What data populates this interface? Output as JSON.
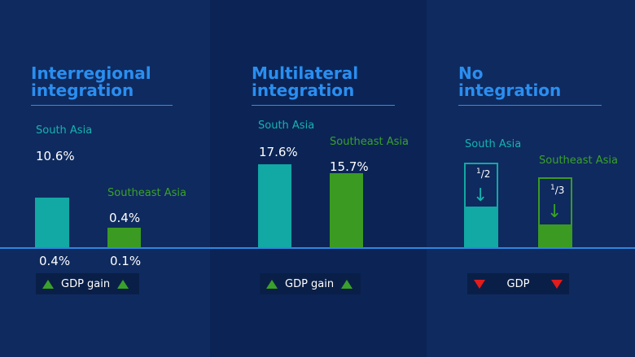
{
  "colors": {
    "south_asia": "#12a8a4",
    "southeast_asia": "#3b9a22",
    "title": "#2a8ef0",
    "up": "#3aa12a",
    "down": "#e21b1b"
  },
  "panels": [
    {
      "title": "Interregional\nintegration",
      "south_label": "South Asia",
      "southeast_label": "Southeast Asia",
      "south_value": "10.6%",
      "southeast_value": "0.4%",
      "south_below": "0.4%",
      "southeast_below": "0.1%",
      "legend": "GDP gain"
    },
    {
      "title": "Multilateral\nintegration",
      "south_label": "South Asia",
      "southeast_label": "Southeast Asia",
      "south_value": "17.6%",
      "southeast_value": "15.7%",
      "legend": "GDP gain"
    },
    {
      "title": "No\nintegration",
      "south_label": "South Asia",
      "southeast_label": "Southeast Asia",
      "south_frac_num": "1",
      "south_frac_den": "2",
      "southeast_frac_num": "1",
      "southeast_frac_den": "3",
      "legend": "GDP"
    }
  ],
  "chart_data": [
    {
      "type": "bar",
      "title": "Interregional integration",
      "categories": [
        "South Asia",
        "Southeast Asia"
      ],
      "values": [
        10.6,
        0.4
      ],
      "labels_below": [
        0.4,
        0.1
      ],
      "unit": "%",
      "legend": "GDP gain"
    },
    {
      "type": "bar",
      "title": "Multilateral integration",
      "categories": [
        "South Asia",
        "Southeast Asia"
      ],
      "values": [
        17.6,
        15.7
      ],
      "unit": "%",
      "legend": "GDP gain"
    },
    {
      "type": "bar",
      "title": "No integration",
      "categories": [
        "South Asia",
        "Southeast Asia"
      ],
      "reduction_fractions": [
        0.5,
        0.333
      ],
      "legend": "GDP"
    }
  ]
}
